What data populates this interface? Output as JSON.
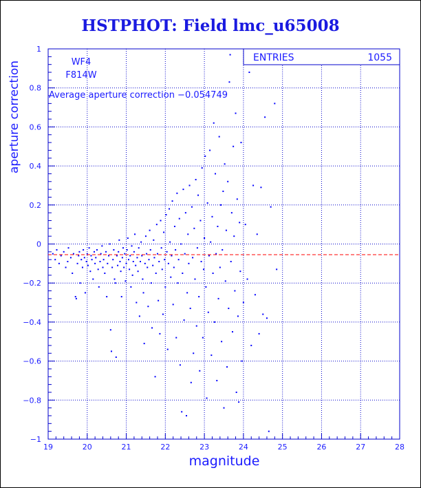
{
  "chart_data": {
    "type": "scatter",
    "title": "HSTPHOT: Field lmc_u65008",
    "xlabel": "magnitude",
    "ylabel": "aperture correction",
    "xlim": [
      19,
      28
    ],
    "ylim": [
      -1,
      1
    ],
    "x_ticks": [
      "19",
      "20",
      "21",
      "22",
      "23",
      "24",
      "25",
      "26",
      "27",
      "28"
    ],
    "y_ticks": [
      "1",
      "0.8",
      "0.6",
      "0.4",
      "0.2",
      "0",
      "−0.2",
      "−0.4",
      "−0.6",
      "−0.8",
      "−1"
    ],
    "grid": true,
    "marker_color": "#0000ff",
    "reference_line": {
      "y": -0.054749,
      "color": "#ff0000",
      "style": "dashed"
    },
    "annotations": {
      "chip": "WF4",
      "filter": "F814W",
      "average": "Average aperture correction −0.054749"
    },
    "stats_box": {
      "label": "ENTRIES",
      "value": "1055"
    },
    "points": [
      [
        19.12,
        -0.05
      ],
      [
        19.18,
        -0.08
      ],
      [
        19.22,
        -0.03
      ],
      [
        19.28,
        -0.1
      ],
      [
        19.33,
        -0.06
      ],
      [
        19.4,
        -0.04
      ],
      [
        19.45,
        -0.12
      ],
      [
        19.5,
        -0.09
      ],
      [
        19.52,
        -0.02
      ],
      [
        19.58,
        -0.07
      ],
      [
        19.62,
        -0.15
      ],
      [
        19.65,
        -0.05
      ],
      [
        19.7,
        -0.27
      ],
      [
        19.72,
        -0.28
      ],
      [
        19.75,
        -0.1
      ],
      [
        19.78,
        -0.06
      ],
      [
        19.8,
        -0.04
      ],
      [
        19.82,
        -0.2
      ],
      [
        19.85,
        -0.08
      ],
      [
        19.88,
        -0.12
      ],
      [
        19.9,
        -0.03
      ],
      [
        19.93,
        -0.07
      ],
      [
        19.95,
        -0.25
      ],
      [
        19.98,
        -0.09
      ],
      [
        20.0,
        -0.05
      ],
      [
        20.02,
        -0.11
      ],
      [
        20.05,
        -0.02
      ],
      [
        20.08,
        -0.14
      ],
      [
        20.1,
        -0.06
      ],
      [
        20.12,
        -0.08
      ],
      [
        20.15,
        -0.18
      ],
      [
        20.18,
        -0.04
      ],
      [
        20.2,
        -0.1
      ],
      [
        20.22,
        -0.07
      ],
      [
        20.25,
        -0.03
      ],
      [
        20.28,
        -0.13
      ],
      [
        20.3,
        -0.22
      ],
      [
        20.33,
        -0.09
      ],
      [
        20.35,
        -0.05
      ],
      [
        20.38,
        -0.01
      ],
      [
        20.4,
        -0.12
      ],
      [
        20.42,
        -0.08
      ],
      [
        20.45,
        -0.15
      ],
      [
        20.48,
        -0.04
      ],
      [
        20.5,
        -0.27
      ],
      [
        20.52,
        -0.1
      ],
      [
        20.55,
        -0.06
      ],
      [
        20.58,
        0.0
      ],
      [
        20.6,
        -0.44
      ],
      [
        20.62,
        -0.55
      ],
      [
        20.64,
        -0.12
      ],
      [
        20.66,
        -0.08
      ],
      [
        20.68,
        -0.03
      ],
      [
        20.7,
        -0.18
      ],
      [
        20.72,
        -0.2
      ],
      [
        20.74,
        -0.58
      ],
      [
        20.76,
        -0.06
      ],
      [
        20.78,
        -0.11
      ],
      [
        20.8,
        -0.04
      ],
      [
        20.82,
        0.02
      ],
      [
        20.84,
        -0.09
      ],
      [
        20.86,
        -0.14
      ],
      [
        20.88,
        -0.27
      ],
      [
        20.9,
        -0.07
      ],
      [
        20.92,
        -0.02
      ],
      [
        20.94,
        -0.12
      ],
      [
        20.96,
        -0.05
      ],
      [
        20.98,
        -0.19
      ],
      [
        21.0,
        -0.1
      ],
      [
        21.02,
        -0.03
      ],
      [
        21.04,
        0.03
      ],
      [
        21.06,
        -0.08
      ],
      [
        21.08,
        -0.13
      ],
      [
        21.1,
        -0.06
      ],
      [
        21.12,
        -0.22
      ],
      [
        21.14,
        -0.01
      ],
      [
        21.16,
        -0.16
      ],
      [
        21.18,
        -0.09
      ],
      [
        21.2,
        -0.04
      ],
      [
        21.22,
        0.05
      ],
      [
        21.24,
        -0.11
      ],
      [
        21.26,
        -0.3
      ],
      [
        21.28,
        -0.07
      ],
      [
        21.3,
        -0.14
      ],
      [
        21.32,
        -0.02
      ],
      [
        21.34,
        -0.37
      ],
      [
        21.36,
        -0.09
      ],
      [
        21.38,
        0.01
      ],
      [
        21.4,
        -0.06
      ],
      [
        21.42,
        -0.18
      ],
      [
        21.44,
        -0.25
      ],
      [
        21.46,
        -0.51
      ],
      [
        21.48,
        -0.1
      ],
      [
        21.5,
        0.04
      ],
      [
        21.52,
        -0.05
      ],
      [
        21.54,
        -0.12
      ],
      [
        21.56,
        -0.32
      ],
      [
        21.58,
        -0.08
      ],
      [
        21.6,
        0.07
      ],
      [
        21.62,
        -0.03
      ],
      [
        21.64,
        -0.2
      ],
      [
        21.66,
        -0.43
      ],
      [
        21.68,
        -0.11
      ],
      [
        21.7,
        0.02
      ],
      [
        21.72,
        -0.07
      ],
      [
        21.74,
        -0.68
      ],
      [
        21.76,
        -0.15
      ],
      [
        21.78,
        0.1
      ],
      [
        21.8,
        -0.05
      ],
      [
        21.82,
        -0.29
      ],
      [
        21.84,
        -0.09
      ],
      [
        21.86,
        -0.46
      ],
      [
        21.88,
        0.12
      ],
      [
        21.9,
        -0.02
      ],
      [
        21.92,
        -0.13
      ],
      [
        21.94,
        -0.36
      ],
      [
        21.96,
        0.06
      ],
      [
        21.98,
        -0.08
      ],
      [
        22.0,
        -0.22
      ],
      [
        22.02,
        0.15
      ],
      [
        22.04,
        -0.04
      ],
      [
        22.06,
        -0.54
      ],
      [
        22.08,
        -0.1
      ],
      [
        22.1,
        0.18
      ],
      [
        22.12,
        0.01
      ],
      [
        22.14,
        -0.17
      ],
      [
        22.16,
        -0.06
      ],
      [
        22.18,
        0.22
      ],
      [
        22.2,
        -0.31
      ],
      [
        22.22,
        -0.12
      ],
      [
        22.24,
        0.09
      ],
      [
        22.26,
        -0.03
      ],
      [
        22.28,
        -0.48
      ],
      [
        22.3,
        0.26
      ],
      [
        22.32,
        -0.2
      ],
      [
        22.34,
        -0.08
      ],
      [
        22.36,
        0.13
      ],
      [
        22.38,
        -0.62
      ],
      [
        22.4,
        0.0
      ],
      [
        22.42,
        -0.86
      ],
      [
        22.44,
        -0.15
      ],
      [
        22.46,
        0.28
      ],
      [
        22.48,
        -0.39
      ],
      [
        22.5,
        -0.05
      ],
      [
        22.52,
        0.16
      ],
      [
        22.54,
        -0.88
      ],
      [
        22.56,
        -0.25
      ],
      [
        22.58,
        0.05
      ],
      [
        22.6,
        -0.1
      ],
      [
        22.62,
        0.3
      ],
      [
        22.64,
        -0.33
      ],
      [
        22.66,
        -0.71
      ],
      [
        22.68,
        0.19
      ],
      [
        22.7,
        -0.07
      ],
      [
        22.72,
        -0.56
      ],
      [
        22.74,
        0.08
      ],
      [
        22.76,
        -0.18
      ],
      [
        22.78,
        0.33
      ],
      [
        22.8,
        -0.42
      ],
      [
        22.82,
        -0.02
      ],
      [
        22.84,
        0.25
      ],
      [
        22.86,
        -0.27
      ],
      [
        22.88,
        -0.65
      ],
      [
        22.9,
        0.12
      ],
      [
        22.92,
        -0.09
      ],
      [
        22.94,
        0.39
      ],
      [
        22.96,
        -0.48
      ],
      [
        22.98,
        -0.13
      ],
      [
        23.0,
        0.03
      ],
      [
        23.02,
        0.45
      ],
      [
        23.04,
        -0.22
      ],
      [
        23.06,
        -0.79
      ],
      [
        23.08,
        0.21
      ],
      [
        23.1,
        -0.35
      ],
      [
        23.12,
        -0.06
      ],
      [
        23.14,
        0.48
      ],
      [
        23.16,
        0.01
      ],
      [
        23.18,
        -0.57
      ],
      [
        23.2,
        0.14
      ],
      [
        23.22,
        -0.15
      ],
      [
        23.24,
        0.62
      ],
      [
        23.26,
        -0.4
      ],
      [
        23.28,
        0.36
      ],
      [
        23.3,
        -0.05
      ],
      [
        23.32,
        -0.7
      ],
      [
        23.34,
        0.09
      ],
      [
        23.36,
        -0.28
      ],
      [
        23.38,
        0.55
      ],
      [
        23.4,
        -0.12
      ],
      [
        23.42,
        0.2
      ],
      [
        23.44,
        -0.5
      ],
      [
        23.46,
        -0.03
      ],
      [
        23.48,
        0.27
      ],
      [
        23.5,
        -0.84
      ],
      [
        23.52,
        0.41
      ],
      [
        23.54,
        -0.19
      ],
      [
        23.56,
        0.07
      ],
      [
        23.58,
        -0.63
      ],
      [
        23.6,
        0.32
      ],
      [
        23.62,
        -0.33
      ],
      [
        23.64,
        0.83
      ],
      [
        23.66,
        0.97
      ],
      [
        23.68,
        -0.09
      ],
      [
        23.7,
        0.16
      ],
      [
        23.72,
        -0.45
      ],
      [
        23.74,
        0.5
      ],
      [
        23.76,
        0.04
      ],
      [
        23.78,
        -0.24
      ],
      [
        23.8,
        0.67
      ],
      [
        23.82,
        -0.76
      ],
      [
        23.84,
        0.23
      ],
      [
        23.86,
        -0.37
      ],
      [
        23.88,
        -0.81
      ],
      [
        23.9,
        0.11
      ],
      [
        23.92,
        -0.14
      ],
      [
        23.94,
        0.52
      ],
      [
        23.96,
        -0.6
      ],
      [
        24.0,
        -0.3
      ],
      [
        24.05,
        0.1
      ],
      [
        24.1,
        -0.18
      ],
      [
        24.15,
        0.88
      ],
      [
        24.2,
        -0.52
      ],
      [
        24.25,
        0.3
      ],
      [
        24.3,
        -0.26
      ],
      [
        24.35,
        0.05
      ],
      [
        24.4,
        -0.46
      ],
      [
        24.45,
        0.29
      ],
      [
        24.5,
        -0.36
      ],
      [
        24.55,
        0.65
      ],
      [
        24.6,
        -0.38
      ],
      [
        24.65,
        -0.96
      ],
      [
        24.7,
        0.19
      ],
      [
        24.8,
        0.72
      ],
      [
        24.85,
        -0.13
      ]
    ]
  }
}
